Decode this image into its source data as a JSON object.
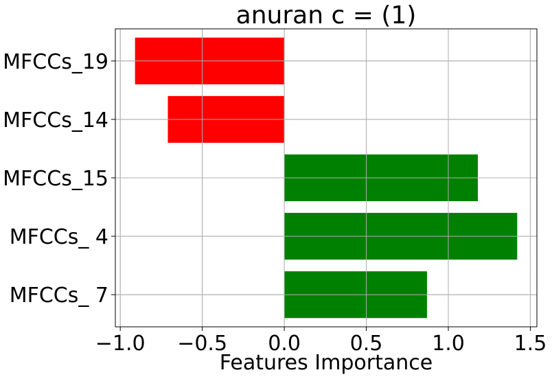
{
  "chart_data": {
    "type": "bar",
    "orientation": "horizontal",
    "title": "anuran c = (1)",
    "xlabel": "Features Importance",
    "ylabel": "",
    "categories": [
      "MFCCs_19",
      "MFCCs_14",
      "MFCCs_15",
      "MFCCs_ 4",
      "MFCCs_ 7"
    ],
    "values": [
      -0.91,
      -0.71,
      1.18,
      1.42,
      0.87
    ],
    "xlim": [
      -1.03,
      1.54
    ],
    "xticks": [
      -1.0,
      -0.5,
      0.0,
      0.5,
      1.0,
      1.5
    ],
    "xtick_labels": [
      "−1.0",
      "−0.5",
      "0.0",
      "0.5",
      "1.0",
      "1.5"
    ],
    "grid": true,
    "colors": {
      "positive": "#008000",
      "negative": "#ff0000"
    }
  }
}
